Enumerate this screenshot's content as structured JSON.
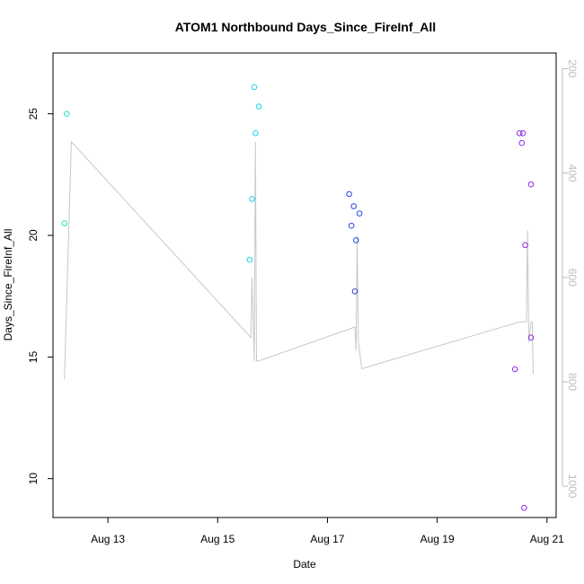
{
  "chart_data": {
    "type": "scatter",
    "title": "ATOM1 Northbound Days_Since_FireInf_All",
    "xlabel": "Date",
    "ylabel": "Days_Since_FireInf_All",
    "xlim": [
      "2023-08-12T00:00",
      "2023-08-21T04:00"
    ],
    "ylim": [
      8.4,
      27.5
    ],
    "x_ticks": [
      {
        "value": "2023-08-13T00:00",
        "label": "Aug 13"
      },
      {
        "value": "2023-08-15T00:00",
        "label": "Aug 15"
      },
      {
        "value": "2023-08-17T00:00",
        "label": "Aug 17"
      },
      {
        "value": "2023-08-19T00:00",
        "label": "Aug 19"
      },
      {
        "value": "2023-08-21T00:00",
        "label": "Aug 21"
      }
    ],
    "y_ticks": [
      10,
      15,
      20,
      25
    ],
    "right_axis": {
      "ticks": [
        200,
        400,
        600,
        800,
        1000
      ],
      "lim": [
        1060,
        170
      ],
      "color": "#bdbdbd"
    },
    "grid": false,
    "legend": "none",
    "points": [
      {
        "x": "2023-08-12T05:00",
        "y": 20.5,
        "color": "#1ae6c2"
      },
      {
        "x": "2023-08-12T06:00",
        "y": 25.0,
        "color": "#1ae6c2"
      },
      {
        "x": "2023-08-15T14:00",
        "y": 19.0,
        "color": "#1ad2f0"
      },
      {
        "x": "2023-08-15T15:00",
        "y": 21.5,
        "color": "#1ad2f0"
      },
      {
        "x": "2023-08-15T16:00",
        "y": 26.1,
        "color": "#1ad2f0"
      },
      {
        "x": "2023-08-15T16:30",
        "y": 24.2,
        "color": "#1ad2f0"
      },
      {
        "x": "2023-08-15T18:00",
        "y": 25.3,
        "color": "#1ad2f0"
      },
      {
        "x": "2023-08-17T09:30",
        "y": 21.7,
        "color": "#2b45e0"
      },
      {
        "x": "2023-08-17T10:30",
        "y": 20.4,
        "color": "#2b45e0"
      },
      {
        "x": "2023-08-17T11:30",
        "y": 21.2,
        "color": "#2b45e0"
      },
      {
        "x": "2023-08-17T12:00",
        "y": 17.7,
        "color": "#2b45e0"
      },
      {
        "x": "2023-08-17T12:30",
        "y": 19.8,
        "color": "#2b45e0"
      },
      {
        "x": "2023-08-17T14:00",
        "y": 20.9,
        "color": "#2b45e0"
      },
      {
        "x": "2023-08-20T10:00",
        "y": 14.5,
        "color": "#8a2be2"
      },
      {
        "x": "2023-08-20T12:00",
        "y": 24.2,
        "color": "#8a2be2"
      },
      {
        "x": "2023-08-20T13:00",
        "y": 23.8,
        "color": "#8a2be2"
      },
      {
        "x": "2023-08-20T13:30",
        "y": 24.2,
        "color": "#8a2be2"
      },
      {
        "x": "2023-08-20T14:00",
        "y": 8.8,
        "color": "#8a2be2"
      },
      {
        "x": "2023-08-20T14:30",
        "y": 19.6,
        "color": "#8a2be2"
      },
      {
        "x": "2023-08-20T17:00",
        "y": 22.1,
        "color": "#8a2be2"
      },
      {
        "x": "2023-08-20T17:00",
        "y": 15.8,
        "color": "#8a2be2"
      }
    ],
    "secondary_series": {
      "axis": "right",
      "color": "#c8c8c8",
      "points": [
        {
          "x": "2023-08-12T05:00",
          "y": 795
        },
        {
          "x": "2023-08-12T08:00",
          "y": 340
        },
        {
          "x": "2023-08-15T14:30",
          "y": 715
        },
        {
          "x": "2023-08-15T15:00",
          "y": 600
        },
        {
          "x": "2023-08-15T16:00",
          "y": 760
        },
        {
          "x": "2023-08-15T16:30",
          "y": 340
        },
        {
          "x": "2023-08-15T17:00",
          "y": 760
        },
        {
          "x": "2023-08-15T18:00",
          "y": 760
        },
        {
          "x": "2023-08-17T12:00",
          "y": 695
        },
        {
          "x": "2023-08-17T12:30",
          "y": 740
        },
        {
          "x": "2023-08-17T13:00",
          "y": 520
        },
        {
          "x": "2023-08-17T13:30",
          "y": 720
        },
        {
          "x": "2023-08-17T15:00",
          "y": 775
        },
        {
          "x": "2023-08-20T12:00",
          "y": 685
        },
        {
          "x": "2023-08-20T15:00",
          "y": 685
        },
        {
          "x": "2023-08-20T15:30",
          "y": 510
        },
        {
          "x": "2023-08-20T16:00",
          "y": 725
        },
        {
          "x": "2023-08-20T17:00",
          "y": 685
        },
        {
          "x": "2023-08-20T17:30",
          "y": 685
        },
        {
          "x": "2023-08-20T18:00",
          "y": 785
        }
      ]
    }
  }
}
